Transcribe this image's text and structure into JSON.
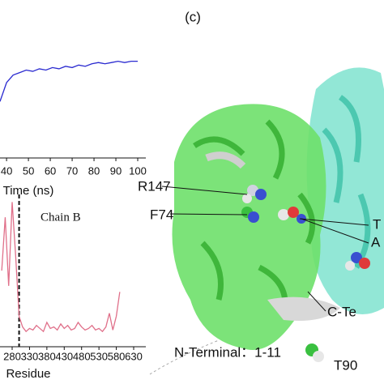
{
  "figure": {
    "panel_label": "(c)",
    "structure_labels": [
      "R147",
      "F74",
      "T",
      "A",
      "C-Te",
      "T90"
    ],
    "n_terminal": "N-Terminal：1-11"
  },
  "chart_data": [
    {
      "type": "line",
      "x_label": "Time (ns)",
      "xlim": [
        37,
        103.7
      ],
      "xticks": [
        40,
        50,
        60,
        70,
        80,
        90,
        100
      ],
      "ylim": [
        0,
        1
      ],
      "x": [
        37,
        40,
        43,
        46,
        49,
        52,
        55,
        58,
        61,
        64,
        67,
        70,
        73,
        76,
        79,
        82,
        85,
        88,
        91,
        94,
        97,
        100
      ],
      "series": [
        {
          "color": "#2a2ad0",
          "values": [
            0.45,
            0.6,
            0.66,
            0.68,
            0.7,
            0.69,
            0.71,
            0.7,
            0.72,
            0.71,
            0.73,
            0.72,
            0.74,
            0.73,
            0.75,
            0.76,
            0.75,
            0.76,
            0.77,
            0.76,
            0.77,
            0.77
          ]
        }
      ]
    },
    {
      "type": "line",
      "x_label": "Residue",
      "annotation": "Chain B",
      "divider_x": 300,
      "xlim": [
        245,
        665
      ],
      "xticks": [
        280,
        330,
        380,
        430,
        480,
        530,
        580,
        630
      ],
      "ylim": [
        0,
        1
      ],
      "x": [
        250,
        260,
        270,
        280,
        290,
        300,
        310,
        320,
        330,
        340,
        350,
        360,
        370,
        380,
        390,
        400,
        410,
        420,
        430,
        440,
        450,
        460,
        470,
        480,
        490,
        500,
        510,
        520,
        530,
        540,
        550,
        560,
        570,
        580,
        590
      ],
      "series": [
        {
          "color": "#e0708a",
          "values": [
            0.5,
            0.85,
            0.4,
            0.95,
            0.6,
            0.2,
            0.13,
            0.1,
            0.12,
            0.11,
            0.14,
            0.12,
            0.1,
            0.16,
            0.12,
            0.13,
            0.11,
            0.15,
            0.12,
            0.14,
            0.11,
            0.12,
            0.16,
            0.13,
            0.11,
            0.12,
            0.14,
            0.11,
            0.12,
            0.1,
            0.13,
            0.22,
            0.11,
            0.2,
            0.36
          ]
        }
      ]
    }
  ]
}
